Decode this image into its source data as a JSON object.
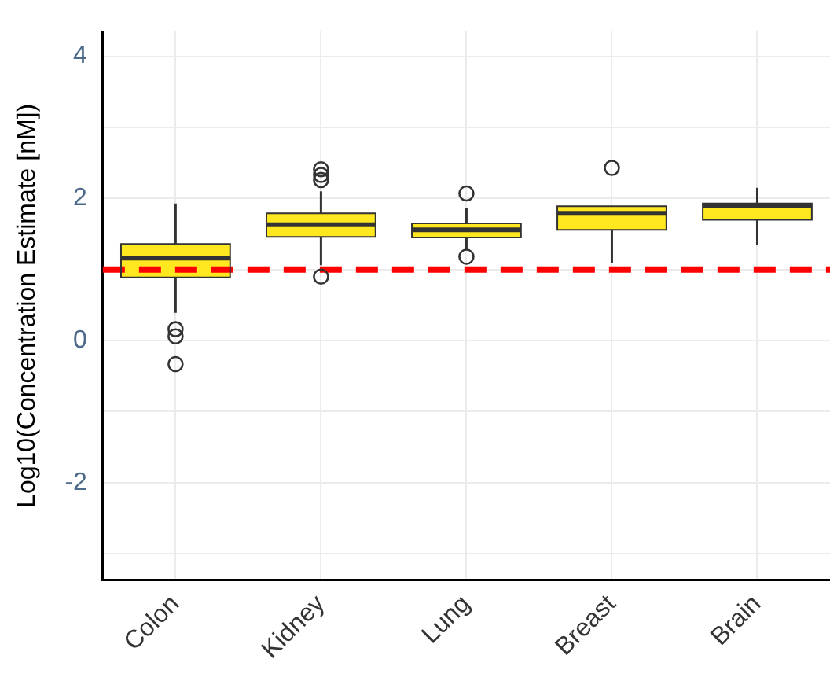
{
  "chart_data": {
    "type": "box",
    "ylabel": "Log10(Concentration Estimate [nM])",
    "categories": [
      "Colon",
      "Kidney",
      "Lung",
      "Breast",
      "Brain"
    ],
    "color": "#ffe81f",
    "boxes": [
      {
        "low": 0.39,
        "q1": 0.89,
        "median": 1.16,
        "q3": 1.36,
        "high": 1.93,
        "outliers": [
          0.16,
          0.06,
          -0.33
        ]
      },
      {
        "low": 1.06,
        "q1": 1.46,
        "median": 1.63,
        "q3": 1.79,
        "high": 2.1,
        "outliers": [
          2.41,
          2.33,
          2.26,
          0.9
        ]
      },
      {
        "low": 1.28,
        "q1": 1.45,
        "median": 1.56,
        "q3": 1.65,
        "high": 1.87,
        "outliers": [
          2.07,
          1.18
        ]
      },
      {
        "low": 1.09,
        "q1": 1.56,
        "median": 1.79,
        "q3": 1.89,
        "high": 1.89,
        "outliers": [
          2.43
        ]
      },
      {
        "low": 1.34,
        "q1": 1.7,
        "median": 1.9,
        "q3": 1.93,
        "high": 2.15
      }
    ],
    "ylim": [
      -3.37,
      4.35
    ],
    "yticks": [
      {
        "value": -3,
        "label": null
      },
      -2,
      {
        "value": -1,
        "label": null
      },
      0,
      {
        "value": 1,
        "label": null
      },
      2,
      {
        "value": 3,
        "label": null
      },
      4
    ],
    "grid": true,
    "ref_lines": [
      {
        "axis": "y",
        "value": 1,
        "color": "#ff0000",
        "line_style": "dashed"
      }
    ]
  }
}
